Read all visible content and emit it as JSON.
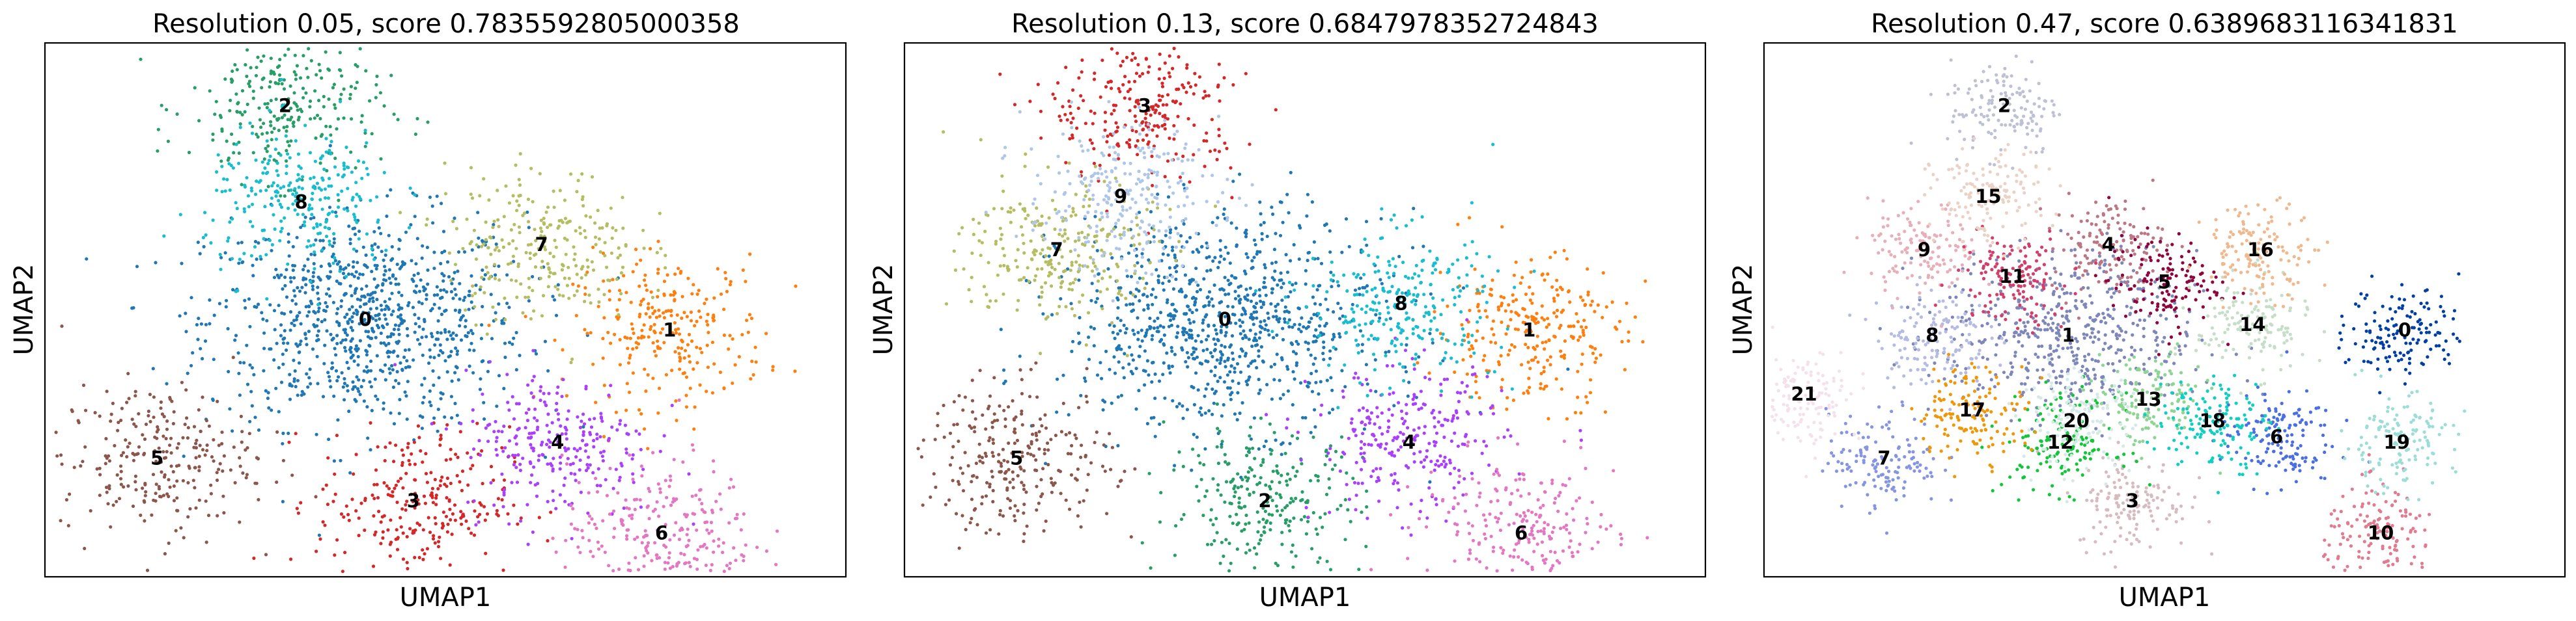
{
  "chart_data": [
    {
      "type": "scatter",
      "title": "Resolution 0.05, score 0.7835592805000358",
      "xlabel": "UMAP1",
      "ylabel": "UMAP2",
      "legend": "on data",
      "grid": false,
      "xlim": [
        0,
        100
      ],
      "ylim": [
        0,
        100
      ],
      "clusters": [
        {
          "name": "0",
          "color": "#1f77b4",
          "x": 40,
          "y": 48
        },
        {
          "name": "1",
          "color": "#ff7f0e",
          "x": 78,
          "y": 46
        },
        {
          "name": "2",
          "color": "#279e68",
          "x": 30,
          "y": 88
        },
        {
          "name": "3",
          "color": "#d62728",
          "x": 46,
          "y": 14
        },
        {
          "name": "4",
          "color": "#aa40fc",
          "x": 64,
          "y": 25
        },
        {
          "name": "5",
          "color": "#8c564b",
          "x": 14,
          "y": 22
        },
        {
          "name": "6",
          "color": "#e377c2",
          "x": 77,
          "y": 8
        },
        {
          "name": "7",
          "color": "#b5bd61",
          "x": 62,
          "y": 62
        },
        {
          "name": "8",
          "color": "#17becf",
          "x": 32,
          "y": 70
        }
      ]
    },
    {
      "type": "scatter",
      "title": "Resolution 0.13, score 0.6847978352724843",
      "xlabel": "UMAP1",
      "ylabel": "UMAP2",
      "legend": "on data",
      "grid": false,
      "xlim": [
        0,
        100
      ],
      "ylim": [
        0,
        100
      ],
      "clusters": [
        {
          "name": "0",
          "color": "#1f77b4",
          "x": 40,
          "y": 48
        },
        {
          "name": "1",
          "color": "#ff7f0e",
          "x": 78,
          "y": 46
        },
        {
          "name": "2",
          "color": "#279e68",
          "x": 45,
          "y": 14
        },
        {
          "name": "3",
          "color": "#d62728",
          "x": 30,
          "y": 88
        },
        {
          "name": "4",
          "color": "#aa40fc",
          "x": 63,
          "y": 25
        },
        {
          "name": "5",
          "color": "#8c564b",
          "x": 14,
          "y": 22
        },
        {
          "name": "6",
          "color": "#e377c2",
          "x": 77,
          "y": 8
        },
        {
          "name": "7",
          "color": "#b5bd61",
          "x": 19,
          "y": 61
        },
        {
          "name": "8",
          "color": "#17becf",
          "x": 62,
          "y": 51
        },
        {
          "name": "9",
          "color": "#aec7e8",
          "x": 27,
          "y": 71
        }
      ]
    },
    {
      "type": "scatter",
      "title": "Resolution 0.47, score 0.6389683116341831",
      "xlabel": "UMAP1",
      "ylabel": "UMAP2",
      "legend": "on data",
      "grid": false,
      "xlim": [
        0,
        100
      ],
      "ylim": [
        0,
        100
      ],
      "clusters": [
        {
          "name": "0",
          "color": "#023fa5",
          "x": 80,
          "y": 46
        },
        {
          "name": "1",
          "color": "#7d87b9",
          "x": 38,
          "y": 45
        },
        {
          "name": "2",
          "color": "#bec1d4",
          "x": 30,
          "y": 88
        },
        {
          "name": "3",
          "color": "#d6bcc0",
          "x": 46,
          "y": 14
        },
        {
          "name": "4",
          "color": "#bb7784",
          "x": 43,
          "y": 62
        },
        {
          "name": "5",
          "color": "#8e063b",
          "x": 50,
          "y": 55
        },
        {
          "name": "6",
          "color": "#4a6fe3",
          "x": 64,
          "y": 26
        },
        {
          "name": "7",
          "color": "#8595e1",
          "x": 15,
          "y": 22
        },
        {
          "name": "8",
          "color": "#b5bbe3",
          "x": 21,
          "y": 45
        },
        {
          "name": "9",
          "color": "#e6afb9",
          "x": 20,
          "y": 61
        },
        {
          "name": "10",
          "color": "#e07b91",
          "x": 77,
          "y": 8
        },
        {
          "name": "11",
          "color": "#d33f6a",
          "x": 31,
          "y": 56
        },
        {
          "name": "12",
          "color": "#11c638",
          "x": 37,
          "y": 25
        },
        {
          "name": "13",
          "color": "#8dd593",
          "x": 48,
          "y": 33
        },
        {
          "name": "14",
          "color": "#c6dec7",
          "x": 61,
          "y": 47
        },
        {
          "name": "15",
          "color": "#ead3c6",
          "x": 28,
          "y": 71
        },
        {
          "name": "16",
          "color": "#f0b98d",
          "x": 62,
          "y": 61
        },
        {
          "name": "17",
          "color": "#ef9708",
          "x": 26,
          "y": 31
        },
        {
          "name": "18",
          "color": "#0fcfc0",
          "x": 56,
          "y": 29
        },
        {
          "name": "19",
          "color": "#9cded6",
          "x": 79,
          "y": 25
        },
        {
          "name": "20",
          "color": "#d5eae7",
          "x": 39,
          "y": 29
        },
        {
          "name": "21",
          "color": "#f3e1eb",
          "x": 5,
          "y": 34
        }
      ]
    }
  ]
}
